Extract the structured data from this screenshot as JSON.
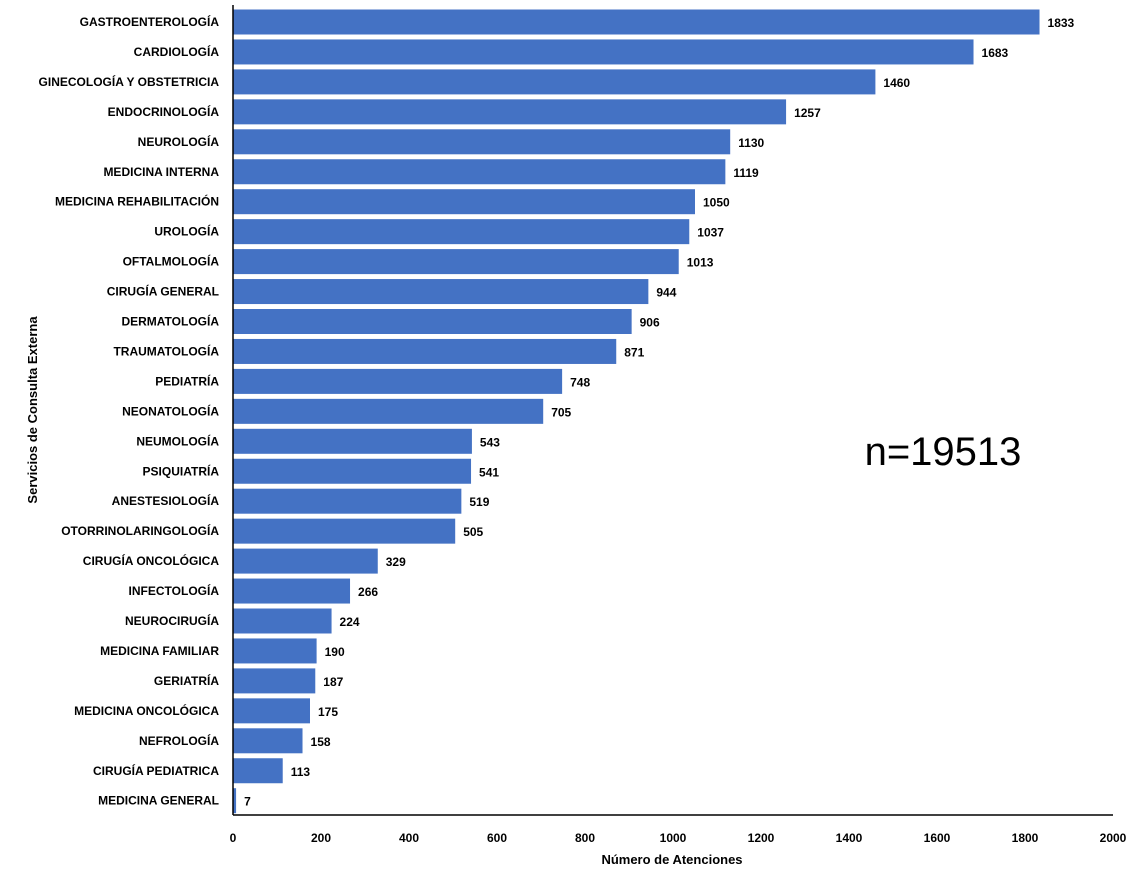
{
  "chart_data": {
    "type": "bar",
    "orientation": "horizontal",
    "title": "",
    "xlabel": "Número de Atenciones",
    "ylabel": "Servicios de Consulta Externa",
    "xlim": [
      0,
      2000
    ],
    "xticks": [
      "0",
      "200",
      "400",
      "600",
      "800",
      "1000",
      "1200",
      "1400",
      "1600",
      "1800",
      "2000"
    ],
    "grid": false,
    "legend": "none",
    "bar_color": "#4472C4",
    "annotation": "n=19513",
    "categories": [
      "GASTROENTEROLOGÍA",
      "CARDIOLOGÍA",
      "GINECOLOGÍA Y OBSTETRICIA",
      "ENDOCRINOLOGÍA",
      "NEUROLOGÍA",
      "MEDICINA INTERNA",
      "MEDICINA REHABILITACIÓN",
      "UROLOGÍA",
      "OFTALMOLOGÍA",
      "CIRUGÍA GENERAL",
      "DERMATOLOGÍA",
      "TRAUMATOLOGÍA",
      "PEDIATRÍA",
      "NEONATOLOGÍA",
      "NEUMOLOGÍA",
      "PSIQUIATRÍA",
      "ANESTESIOLOGÍA",
      "OTORRINOLARINGOLOGÍA",
      "CIRUGÍA ONCOLÓGICA",
      "INFECTOLOGÍA",
      "NEUROCIRUGÍA",
      "MEDICINA FAMILIAR",
      "GERIATRÍA",
      "MEDICINA ONCOLÓGICA",
      "NEFROLOGÍA",
      "CIRUGÍA PEDIATRICA",
      "MEDICINA GENERAL"
    ],
    "values": [
      1833,
      1683,
      1460,
      1257,
      1130,
      1119,
      1050,
      1037,
      1013,
      944,
      906,
      871,
      748,
      705,
      543,
      541,
      519,
      505,
      329,
      266,
      224,
      190,
      187,
      175,
      158,
      113,
      7
    ]
  }
}
